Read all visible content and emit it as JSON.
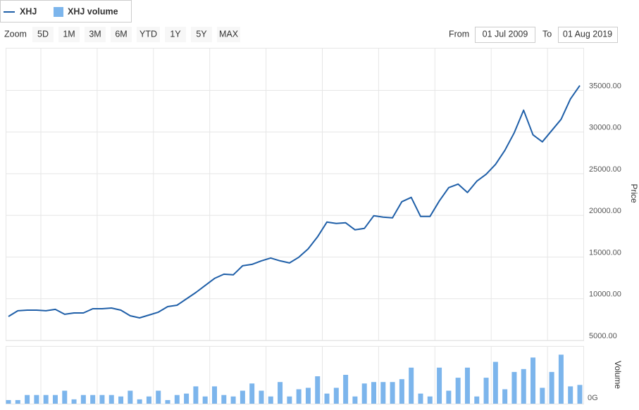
{
  "range_selector": {
    "zoom_label": "Zoom",
    "buttons": [
      {
        "label": "5D",
        "enabled": false
      },
      {
        "label": "1M",
        "enabled": false
      },
      {
        "label": "3M",
        "enabled": false
      },
      {
        "label": "6M",
        "enabled": true
      },
      {
        "label": "YTD",
        "enabled": true
      },
      {
        "label": "1Y",
        "enabled": true
      },
      {
        "label": "5Y",
        "enabled": true
      },
      {
        "label": "MAX",
        "enabled": false
      }
    ],
    "from_label": "From",
    "from_value": "01 Jul 2009",
    "to_label": "To",
    "to_value": "01 Aug 2019"
  },
  "chart_data": {
    "type": "line",
    "ylabel": "Price",
    "y2label": "Volume",
    "grid": true,
    "ylim": [
      5000,
      40100
    ],
    "yticks": [
      {
        "value": 5000,
        "label": "5000.00"
      },
      {
        "value": 10000,
        "label": "10000.00"
      },
      {
        "value": 15000,
        "label": "15000.00"
      },
      {
        "value": 20000,
        "label": "20000.00"
      },
      {
        "value": 25000,
        "label": "25000.00"
      },
      {
        "value": 30000,
        "label": "30000.00"
      },
      {
        "value": 35000,
        "label": "35000.00"
      }
    ],
    "y2lim": [
      0,
      80
    ],
    "y2ticks": [
      {
        "value": 0,
        "label": "0G"
      }
    ],
    "series": [
      {
        "name": "XHJ",
        "type": "line",
        "color": "#1f5fa8",
        "values": [
          7870,
          8550,
          8630,
          8630,
          8550,
          8720,
          8130,
          8290,
          8290,
          8800,
          8800,
          8880,
          8630,
          7950,
          7700,
          8040,
          8380,
          9050,
          9220,
          9980,
          10740,
          11590,
          12430,
          12940,
          12860,
          13950,
          14120,
          14540,
          14880,
          14540,
          14290,
          14970,
          15980,
          17420,
          19190,
          19020,
          19110,
          18260,
          18430,
          19950,
          19780,
          19700,
          21640,
          22150,
          19870,
          19870,
          21730,
          23330,
          23750,
          22740,
          24100,
          24930,
          26110,
          27800,
          29910,
          32620,
          29660,
          28820,
          30170,
          31520,
          33970,
          35580
        ]
      },
      {
        "name": "XHJ volume",
        "type": "bar",
        "axis": "y2",
        "color": "#7cb5ec",
        "values": [
          5,
          5,
          12,
          12,
          12,
          12,
          18,
          6,
          12,
          12,
          12,
          12,
          10,
          18,
          6,
          10,
          18,
          5,
          12,
          14,
          24,
          10,
          24,
          12,
          10,
          18,
          28,
          18,
          10,
          30,
          10,
          20,
          22,
          38,
          14,
          22,
          40,
          10,
          28,
          30,
          30,
          30,
          34,
          50,
          14,
          10,
          50,
          18,
          36,
          50,
          10,
          36,
          58,
          20,
          44,
          48,
          64,
          22,
          44,
          68,
          24,
          26
        ]
      }
    ]
  }
}
